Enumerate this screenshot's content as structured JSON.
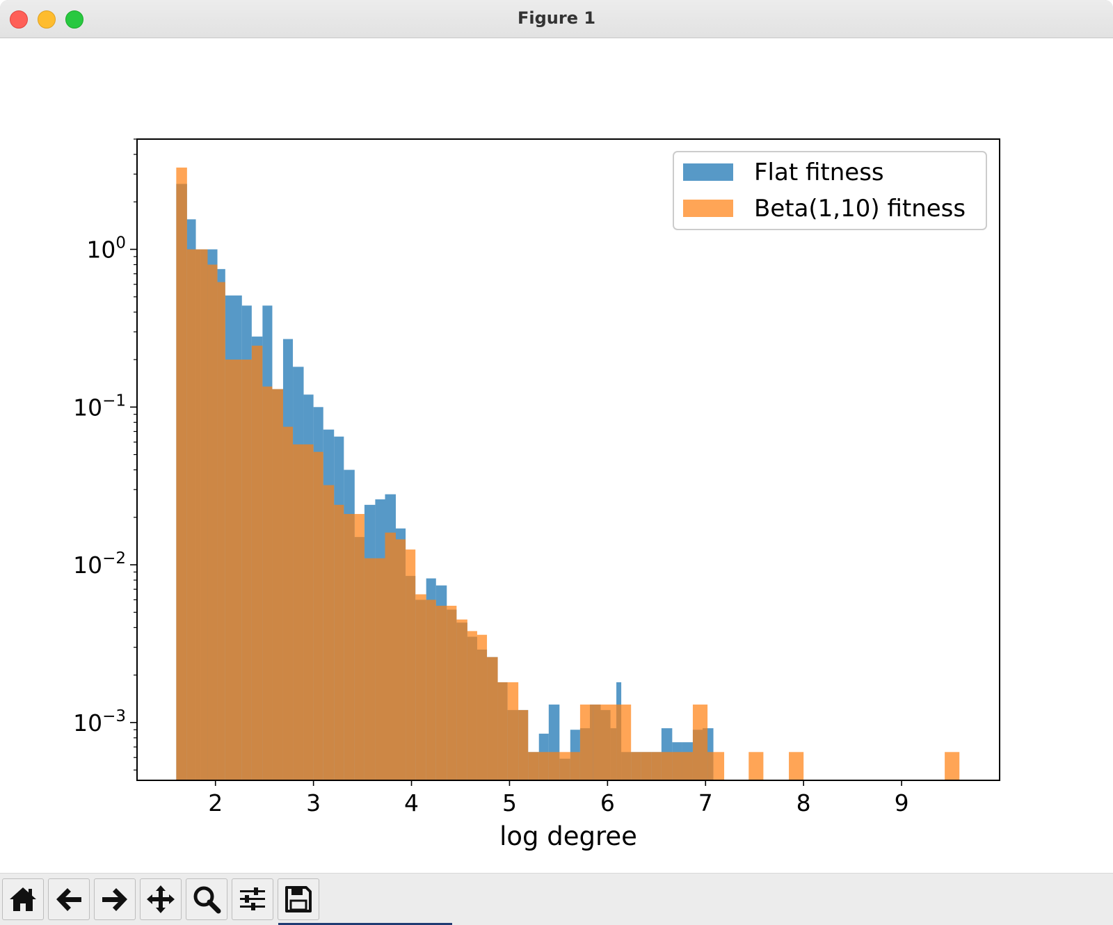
{
  "window": {
    "title": "Figure 1"
  },
  "toolbar": {
    "buttons": [
      {
        "name": "home-button",
        "icon": "home-icon"
      },
      {
        "name": "back-button",
        "icon": "arrow-left-icon"
      },
      {
        "name": "forward-button",
        "icon": "arrow-right-icon"
      },
      {
        "name": "pan-button",
        "icon": "move-icon"
      },
      {
        "name": "zoom-button",
        "icon": "magnifier-icon"
      },
      {
        "name": "configure-subplots-button",
        "icon": "sliders-icon"
      },
      {
        "name": "save-button",
        "icon": "floppy-disk-icon"
      }
    ]
  },
  "chart_data": {
    "type": "bar",
    "xlabel": "log degree",
    "ylabel": "",
    "title": "",
    "xlim": [
      1.2,
      10.0
    ],
    "ylim": [
      0.00043,
      5.0
    ],
    "yscale": "log",
    "xticks": [
      "2",
      "3",
      "4",
      "5",
      "6",
      "7",
      "8",
      "9"
    ],
    "yticks": [
      {
        "base": "10",
        "exp": "0"
      },
      {
        "base": "10",
        "exp": "−1"
      },
      {
        "base": "10",
        "exp": "−2"
      },
      {
        "base": "10",
        "exp": "−3"
      }
    ],
    "legend_position": "upper right",
    "series": [
      {
        "name": "Flat fitness",
        "color": "#1f77b4",
        "alpha": 0.75,
        "bins": [
          [
            1.6,
            1.71,
            2.6
          ],
          [
            1.71,
            1.8,
            1.55
          ],
          [
            1.8,
            1.85,
            1.0
          ],
          [
            1.85,
            2.02,
            1.0
          ],
          [
            2.02,
            2.1,
            0.75
          ],
          [
            2.1,
            2.27,
            0.51
          ],
          [
            2.27,
            2.37,
            0.44
          ],
          [
            2.37,
            2.48,
            0.28
          ],
          [
            2.48,
            2.58,
            0.44
          ],
          [
            2.58,
            2.69,
            0.13
          ],
          [
            2.69,
            2.79,
            0.27
          ],
          [
            2.79,
            2.9,
            0.18
          ],
          [
            2.9,
            3.0,
            0.12
          ],
          [
            3.0,
            3.1,
            0.1
          ],
          [
            3.1,
            3.21,
            0.072
          ],
          [
            3.21,
            3.31,
            0.065
          ],
          [
            3.31,
            3.42,
            0.04
          ],
          [
            3.42,
            3.52,
            0.015
          ],
          [
            3.52,
            3.63,
            0.024
          ],
          [
            3.63,
            3.73,
            0.026
          ],
          [
            3.73,
            3.84,
            0.028
          ],
          [
            3.84,
            3.94,
            0.017
          ],
          [
            3.94,
            4.04,
            0.0085
          ],
          [
            4.04,
            4.15,
            0.006
          ],
          [
            4.15,
            4.25,
            0.0082
          ],
          [
            4.25,
            4.36,
            0.0074
          ],
          [
            4.36,
            4.46,
            0.0052
          ],
          [
            4.46,
            4.57,
            0.0043
          ],
          [
            4.57,
            4.67,
            0.0035
          ],
          [
            4.67,
            4.77,
            0.0029
          ],
          [
            4.77,
            4.88,
            0.0026
          ],
          [
            4.88,
            4.98,
            0.0018
          ],
          [
            4.98,
            5.09,
            0.0012
          ],
          [
            5.09,
            5.19,
            0.0012
          ],
          [
            5.19,
            5.3,
            0.00065
          ],
          [
            5.3,
            5.4,
            0.00085
          ],
          [
            5.4,
            5.51,
            0.0013
          ],
          [
            5.51,
            5.62,
            0.00059
          ],
          [
            5.62,
            5.72,
            0.0009
          ],
          [
            5.72,
            5.82,
            0.00092
          ],
          [
            5.82,
            5.93,
            0.0013
          ],
          [
            5.93,
            6.03,
            0.0012
          ],
          [
            6.03,
            6.09,
            0.00092
          ],
          [
            6.09,
            6.14,
            0.0018
          ],
          [
            6.14,
            6.24,
            0.00065
          ],
          [
            6.24,
            6.34,
            0.00065
          ],
          [
            6.34,
            6.45,
            0.00065
          ],
          [
            6.45,
            6.55,
            0.00065
          ],
          [
            6.55,
            6.66,
            0.00092
          ],
          [
            6.66,
            6.76,
            0.00075
          ],
          [
            6.76,
            6.87,
            0.00075
          ],
          [
            6.87,
            6.97,
            0.0009
          ],
          [
            6.97,
            7.08,
            0.00092
          ]
        ]
      },
      {
        "name": "Beta(1,10) fitness",
        "color": "#ff7f0e",
        "alpha": 0.7,
        "bins": [
          [
            1.6,
            1.71,
            3.3
          ],
          [
            1.71,
            1.86,
            1.0
          ],
          [
            1.86,
            1.92,
            1.0
          ],
          [
            1.92,
            2.02,
            0.8
          ],
          [
            2.02,
            2.1,
            0.62
          ],
          [
            2.1,
            2.27,
            0.2
          ],
          [
            2.27,
            2.37,
            0.2
          ],
          [
            2.37,
            2.48,
            0.245
          ],
          [
            2.48,
            2.58,
            0.135
          ],
          [
            2.58,
            2.69,
            0.13
          ],
          [
            2.69,
            2.79,
            0.075
          ],
          [
            2.79,
            2.9,
            0.058
          ],
          [
            2.9,
            3.0,
            0.058
          ],
          [
            3.0,
            3.1,
            0.052
          ],
          [
            3.1,
            3.21,
            0.032
          ],
          [
            3.21,
            3.31,
            0.024
          ],
          [
            3.31,
            3.42,
            0.021
          ],
          [
            3.42,
            3.52,
            0.021
          ],
          [
            3.52,
            3.63,
            0.011
          ],
          [
            3.63,
            3.73,
            0.011
          ],
          [
            3.73,
            3.84,
            0.016
          ],
          [
            3.84,
            3.94,
            0.0145
          ],
          [
            3.94,
            4.04,
            0.0125
          ],
          [
            4.04,
            4.15,
            0.0065
          ],
          [
            4.15,
            4.25,
            0.006
          ],
          [
            4.25,
            4.36,
            0.0055
          ],
          [
            4.36,
            4.46,
            0.0055
          ],
          [
            4.46,
            4.57,
            0.0045
          ],
          [
            4.57,
            4.67,
            0.0038
          ],
          [
            4.67,
            4.77,
            0.0036
          ],
          [
            4.77,
            4.88,
            0.0026
          ],
          [
            4.88,
            4.98,
            0.0018
          ],
          [
            4.98,
            5.09,
            0.0018
          ],
          [
            5.09,
            5.19,
            0.0012
          ],
          [
            5.19,
            5.3,
            0.00065
          ],
          [
            5.3,
            5.4,
            0.00065
          ],
          [
            5.4,
            5.51,
            0.00065
          ],
          [
            5.51,
            5.62,
            0.00065
          ],
          [
            5.62,
            5.72,
            0.00065
          ],
          [
            5.72,
            5.85,
            0.0013
          ],
          [
            5.85,
            5.93,
            0.0013
          ],
          [
            5.93,
            6.09,
            0.0013
          ],
          [
            6.09,
            6.24,
            0.0013
          ],
          [
            6.24,
            6.34,
            0.00065
          ],
          [
            6.34,
            6.45,
            0.00065
          ],
          [
            6.45,
            6.55,
            0.00065
          ],
          [
            6.55,
            6.66,
            0.00065
          ],
          [
            6.66,
            6.76,
            0.00065
          ],
          [
            6.76,
            6.87,
            0.00065
          ],
          [
            6.87,
            7.02,
            0.0013
          ],
          [
            7.02,
            7.08,
            0.00065
          ],
          [
            7.08,
            7.19,
            0.00065
          ],
          [
            7.44,
            7.59,
            0.00065
          ],
          [
            7.85,
            8.0,
            0.00065
          ],
          [
            9.44,
            9.59,
            0.00065
          ]
        ]
      }
    ]
  }
}
